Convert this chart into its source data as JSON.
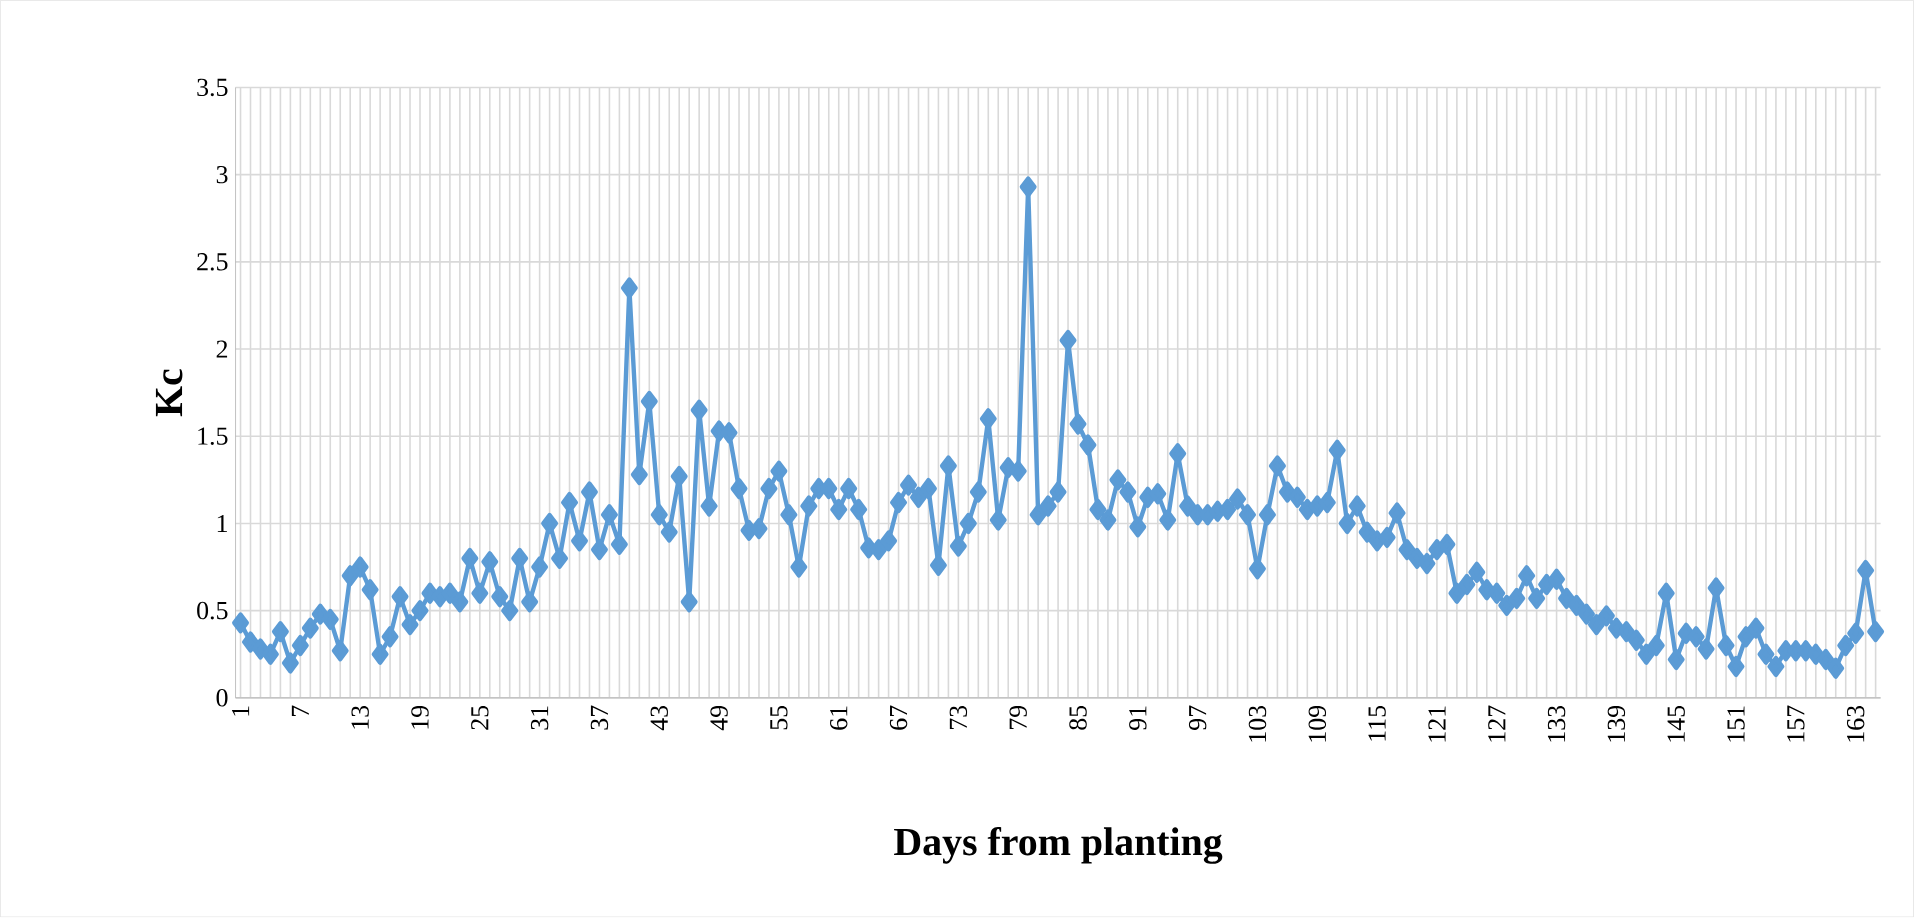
{
  "chart_data": {
    "type": "line",
    "xlabel": "Days from planting",
    "ylabel": "Kc",
    "categories": [
      "1",
      null,
      null,
      null,
      null,
      null,
      "7",
      null,
      null,
      null,
      null,
      null,
      "13",
      null,
      null,
      null,
      null,
      null,
      "19",
      null,
      null,
      null,
      null,
      null,
      "25",
      null,
      null,
      null,
      null,
      null,
      "31",
      null,
      null,
      null,
      null,
      null,
      "37",
      null,
      null,
      null,
      null,
      null,
      "43",
      null,
      null,
      null,
      null,
      null,
      "49",
      null,
      null,
      null,
      null,
      null,
      "55",
      null,
      null,
      null,
      null,
      null,
      "61",
      null,
      null,
      null,
      null,
      null,
      "67",
      null,
      null,
      null,
      null,
      null,
      "73",
      null,
      null,
      null,
      null,
      null,
      "79",
      null,
      null,
      null,
      null,
      null,
      "85",
      null,
      null,
      null,
      null,
      null,
      "91",
      null,
      null,
      null,
      null,
      null,
      "97",
      null,
      null,
      null,
      null,
      null,
      "103",
      null,
      null,
      null,
      null,
      null,
      "109",
      null,
      null,
      null,
      null,
      null,
      "115",
      null,
      null,
      null,
      null,
      null,
      "121",
      null,
      null,
      null,
      null,
      null,
      "127",
      null,
      null,
      null,
      null,
      null,
      "133",
      null,
      null,
      null,
      null,
      null,
      "139",
      null,
      null,
      null,
      null,
      null,
      "145",
      null,
      null,
      null,
      null,
      null,
      "151",
      null,
      null,
      null,
      null,
      null,
      "157",
      null,
      null,
      null,
      null,
      null,
      "163",
      null,
      null
    ],
    "series": [
      {
        "color": "#5b9bd5",
        "values": [
          0.43,
          0.32,
          0.28,
          0.25,
          0.38,
          0.2,
          0.3,
          0.4,
          0.48,
          0.45,
          0.27,
          0.7,
          0.75,
          0.62,
          0.25,
          0.35,
          0.58,
          0.42,
          0.5,
          0.6,
          0.58,
          0.6,
          0.55,
          0.8,
          0.6,
          0.78,
          0.58,
          0.5,
          0.8,
          0.55,
          0.75,
          1.0,
          0.8,
          1.12,
          0.9,
          1.18,
          0.85,
          1.05,
          0.88,
          2.35,
          1.28,
          1.7,
          1.05,
          0.95,
          1.27,
          0.55,
          1.65,
          1.1,
          1.53,
          1.52,
          1.2,
          0.96,
          0.97,
          1.2,
          1.3,
          1.05,
          0.75,
          1.1,
          1.2,
          1.2,
          1.08,
          1.2,
          1.08,
          0.86,
          0.85,
          0.9,
          1.12,
          1.22,
          1.15,
          1.2,
          0.76,
          1.33,
          0.87,
          1.0,
          1.18,
          1.6,
          1.02,
          1.32,
          1.3,
          2.93,
          1.05,
          1.1,
          1.18,
          2.05,
          1.57,
          1.45,
          1.08,
          1.02,
          1.25,
          1.18,
          0.98,
          1.15,
          1.17,
          1.02,
          1.4,
          1.1,
          1.05,
          1.05,
          1.07,
          1.08,
          1.14,
          1.05,
          0.74,
          1.05,
          1.33,
          1.18,
          1.15,
          1.08,
          1.1,
          1.12,
          1.42,
          1.0,
          1.1,
          0.95,
          0.9,
          0.92,
          1.06,
          0.85,
          0.8,
          0.77,
          0.85,
          0.88,
          0.6,
          0.65,
          0.72,
          0.62,
          0.6,
          0.53,
          0.57,
          0.7,
          0.57,
          0.65,
          0.68,
          0.57,
          0.53,
          0.48,
          0.42,
          0.47,
          0.4,
          0.38,
          0.33,
          0.25,
          0.3,
          0.6,
          0.22,
          0.37,
          0.35,
          0.28,
          0.63,
          0.3,
          0.18,
          0.35,
          0.4,
          0.25,
          0.18,
          0.27,
          0.27,
          0.27,
          0.25,
          0.22,
          0.17,
          0.3,
          0.37,
          0.73,
          0.38
        ]
      }
    ],
    "ylim": [
      0,
      3.5
    ],
    "yticks": [
      0,
      0.5,
      1,
      1.5,
      2,
      2.5,
      3,
      3.5
    ],
    "grid": true,
    "marker": "diamond",
    "line_style": "solid"
  }
}
